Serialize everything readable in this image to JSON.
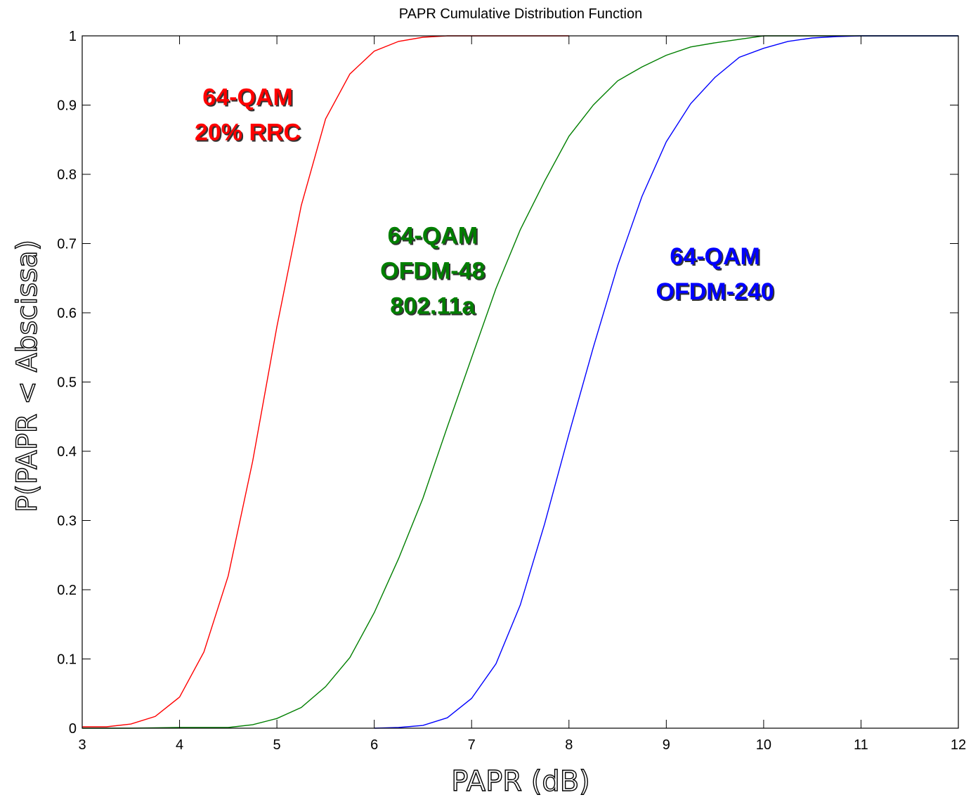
{
  "chart_data": {
    "type": "line",
    "title": "PAPR Cumulative Distribution Function",
    "xlabel": "PAPR (dB)",
    "ylabel": "P(PAPR < Abscissa)",
    "xlim": [
      3,
      12
    ],
    "ylim": [
      0,
      1
    ],
    "xticks": [
      "3",
      "4",
      "5",
      "6",
      "7",
      "8",
      "9",
      "10",
      "11",
      "12"
    ],
    "yticks": [
      "0",
      "0.1",
      "0.2",
      "0.3",
      "0.4",
      "0.5",
      "0.6",
      "0.7",
      "0.8",
      "0.9",
      "1"
    ],
    "grid": false,
    "series": [
      {
        "color": "#ff0000",
        "x": [
          3,
          3.25,
          3.5,
          3.75,
          4,
          4.25,
          4.5,
          4.75,
          5,
          5.25,
          5.5,
          5.75,
          6,
          6.25,
          6.5,
          6.75,
          7,
          7.5,
          8
        ],
        "y": [
          0.002,
          0.002,
          0.006,
          0.017,
          0.045,
          0.11,
          0.22,
          0.385,
          0.58,
          0.755,
          0.88,
          0.945,
          0.978,
          0.992,
          0.998,
          1.0,
          1.0,
          1.0,
          1.0
        ]
      },
      {
        "color": "#007f00",
        "x": [
          3,
          3.5,
          4,
          4.25,
          4.5,
          4.75,
          5,
          5.25,
          5.5,
          5.75,
          6,
          6.25,
          6.5,
          6.75,
          7,
          7.25,
          7.5,
          7.75,
          8,
          8.25,
          8.5,
          8.75,
          9,
          9.25,
          9.5,
          9.75,
          10,
          10.5,
          11,
          12
        ],
        "y": [
          0,
          0,
          0.001,
          0.001,
          0.001,
          0.005,
          0.014,
          0.03,
          0.06,
          0.102,
          0.167,
          0.245,
          0.332,
          0.435,
          0.535,
          0.635,
          0.72,
          0.79,
          0.855,
          0.9,
          0.935,
          0.955,
          0.972,
          0.984,
          0.99,
          0.995,
          1.0,
          1.0,
          1.0,
          1.0
        ]
      },
      {
        "color": "#0000ff",
        "x": [
          6,
          6.25,
          6.5,
          6.75,
          7,
          7.25,
          7.5,
          7.75,
          8,
          8.25,
          8.5,
          8.75,
          9,
          9.25,
          9.5,
          9.75,
          10,
          10.25,
          10.5,
          10.75,
          11,
          11.5,
          12
        ],
        "y": [
          0,
          0.001,
          0.004,
          0.015,
          0.043,
          0.093,
          0.178,
          0.295,
          0.425,
          0.55,
          0.668,
          0.768,
          0.847,
          0.902,
          0.94,
          0.969,
          0.982,
          0.992,
          0.997,
          0.999,
          1.0,
          1.0,
          1.0
        ]
      }
    ],
    "annotations": [
      {
        "lines": [
          "64-QAM",
          "20% RRC"
        ],
        "color": "#ff0000",
        "x": 4.7,
        "y": 0.9
      },
      {
        "lines": [
          "64-QAM",
          "OFDM-48",
          "802.11a"
        ],
        "color": "#007f00",
        "x": 6.6,
        "y": 0.7
      },
      {
        "lines": [
          "64-QAM",
          "OFDM-240"
        ],
        "color": "#0000ff",
        "x": 9.5,
        "y": 0.67
      }
    ]
  }
}
